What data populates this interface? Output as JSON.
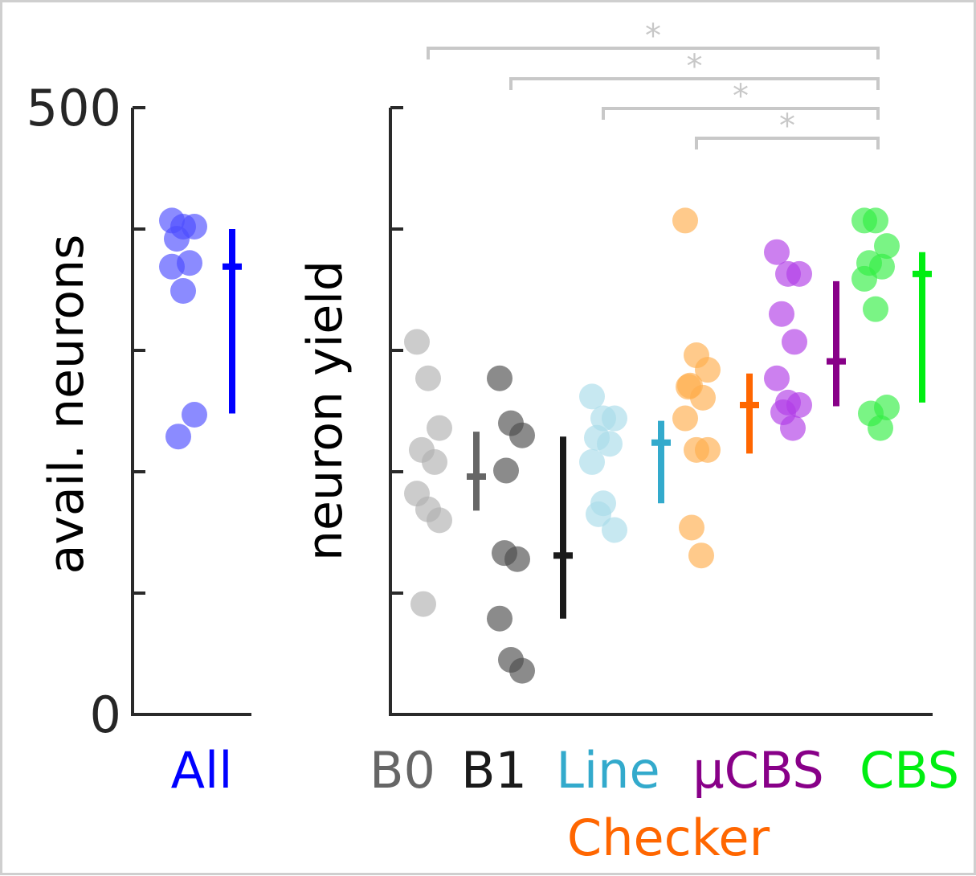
{
  "chart_data": [
    {
      "type": "scatter",
      "ylabel": "avail. neurons",
      "ylim": [
        0,
        500
      ],
      "yticks": [
        0,
        100,
        200,
        300,
        400,
        500
      ],
      "ytick_labels": [
        "0",
        "",
        "",
        "",
        "",
        "500"
      ],
      "categories": [
        {
          "label": "All",
          "color": "#0000ff",
          "point_color": "#4d4dff",
          "points": [
            407,
            402,
            402,
            392,
            372,
            369,
            349,
            247,
            229
          ],
          "mean": 369,
          "err_low": 248,
          "err_high": 400
        }
      ]
    },
    {
      "type": "scatter",
      "ylabel": "neuron yield",
      "ylim": [
        0,
        500
      ],
      "yticks": [
        0,
        100,
        200,
        300,
        400,
        500
      ],
      "categories": [
        {
          "label": "B0",
          "color": "#666666",
          "point_color": "#b0b0b0",
          "points": [
            307,
            277,
            236,
            218,
            208,
            182,
            169,
            160,
            91
          ],
          "mean": 196,
          "err_low": 168,
          "err_high": 233
        },
        {
          "label": "B1",
          "color": "#1a1a1a",
          "point_color": "#4d4d4d",
          "points": [
            277,
            240,
            230,
            133,
            128,
            79,
            45,
            36,
            201
          ],
          "mean": 131,
          "err_low": 79,
          "err_high": 229
        },
        {
          "label": "Line",
          "color": "#33aacc",
          "point_color": "#a9dbea",
          "points": [
            262,
            244,
            244,
            228,
            223,
            208,
            174,
            152,
            165
          ],
          "mean": 224,
          "err_low": 174,
          "err_high": 242
        },
        {
          "label": "Checker",
          "color": "#ff6600",
          "point_color": "#ffad4d",
          "points": [
            407,
            296,
            284,
            271,
            261,
            244,
            218,
            218,
            154,
            131,
            270
          ],
          "mean": 255,
          "err_low": 215,
          "err_high": 281
        },
        {
          "label": "μCBS",
          "color": "#880088",
          "point_color": "#b03ce6",
          "points": [
            381,
            363,
            363,
            330,
            307,
            277,
            257,
            255,
            249,
            236
          ],
          "mean": 291,
          "err_low": 254,
          "err_high": 357
        },
        {
          "label": "CBS",
          "color": "#00ee11",
          "point_color": "#33ee44",
          "points": [
            407,
            407,
            386,
            372,
            369,
            359,
            334,
            253,
            248,
            236
          ],
          "mean": 363,
          "err_low": 257,
          "err_high": 381
        }
      ],
      "significance": [
        {
          "from": "B0",
          "to": "CBS",
          "label": "*"
        },
        {
          "from": "B1",
          "to": "CBS",
          "label": "*"
        },
        {
          "from": "Line",
          "to": "CBS",
          "label": "*"
        },
        {
          "from": "Checker",
          "to": "CBS",
          "label": "*"
        }
      ]
    }
  ]
}
